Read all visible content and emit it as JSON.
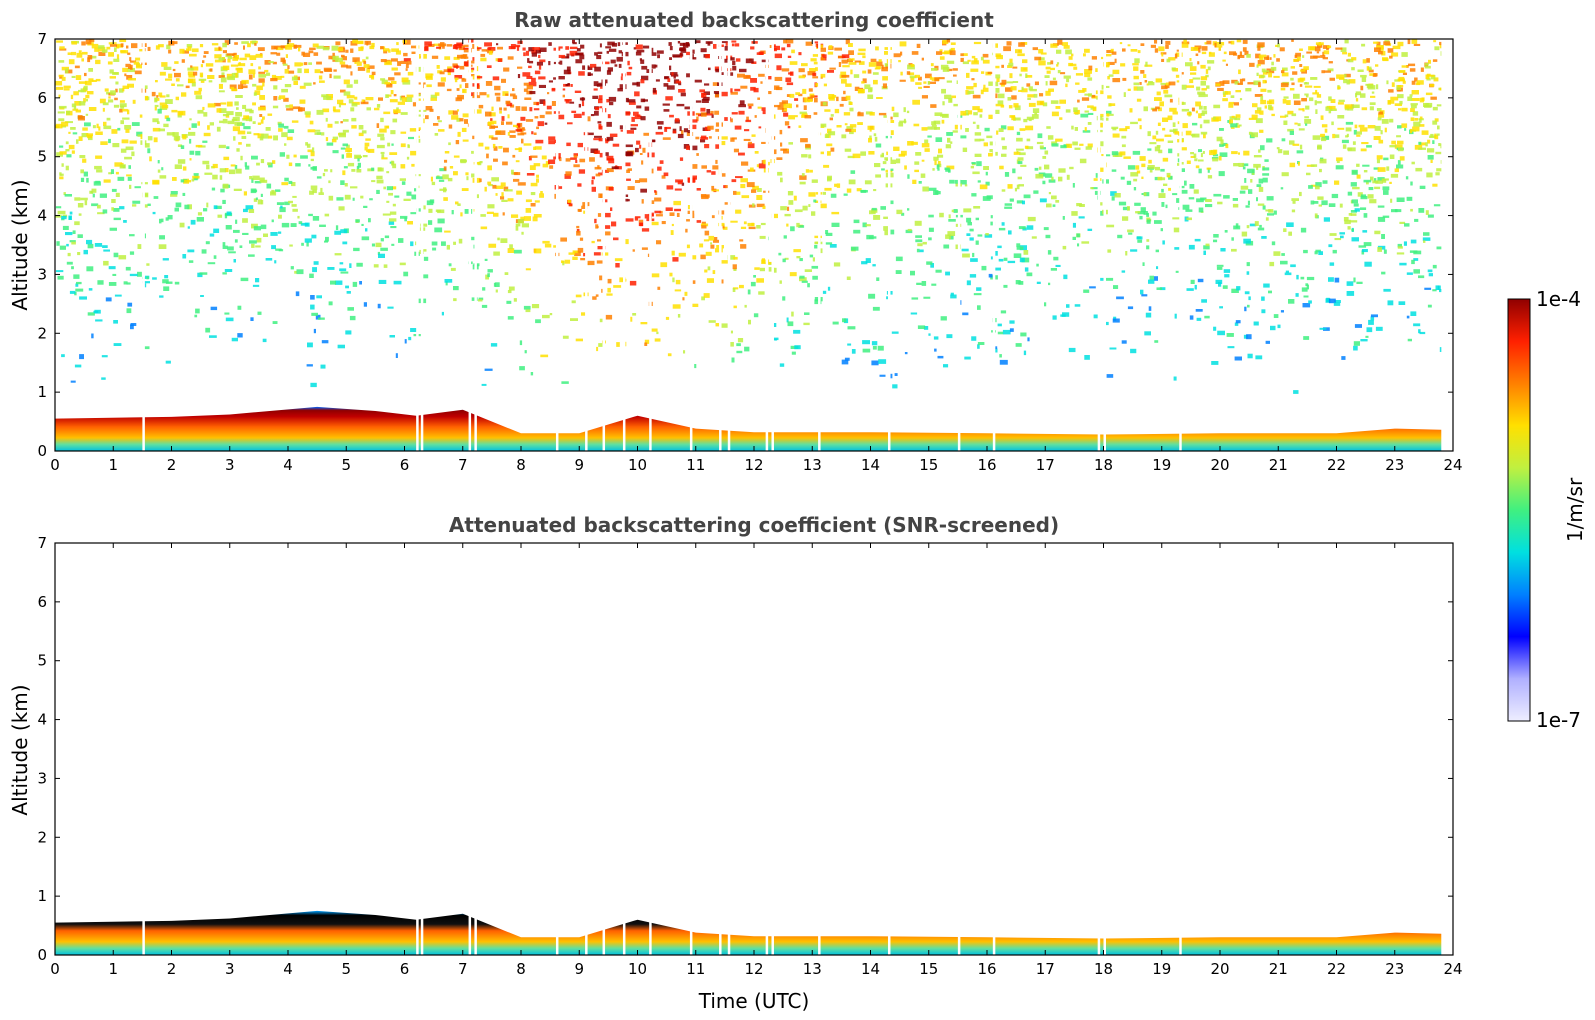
{
  "chart_data": [
    {
      "type": "heatmap",
      "title": "Raw attenuated backscattering coefficient",
      "xlabel": "",
      "ylabel": "Altitude (km)",
      "xlim": [
        0,
        24
      ],
      "ylim": [
        0,
        7
      ],
      "xticks": [
        "0",
        "1",
        "2",
        "3",
        "4",
        "5",
        "6",
        "7",
        "8",
        "9",
        "10",
        "11",
        "12",
        "13",
        "14",
        "15",
        "16",
        "17",
        "18",
        "19",
        "20",
        "21",
        "22",
        "23",
        "24"
      ],
      "yticks": [
        "0",
        "1",
        "2",
        "3",
        "4",
        "5",
        "6",
        "7"
      ],
      "boundary_layer_top_km": {
        "time_h": [
          0,
          2,
          3,
          4.5,
          5.5,
          6.2,
          7,
          8,
          9,
          10,
          11,
          12,
          14,
          16,
          18,
          20,
          22,
          23,
          23.8
        ],
        "altitude_km": [
          0.55,
          0.58,
          0.62,
          0.75,
          0.68,
          0.6,
          0.7,
          0.3,
          0.3,
          0.6,
          0.38,
          0.32,
          0.32,
          0.3,
          0.28,
          0.3,
          0.3,
          0.38,
          0.36
        ]
      },
      "data_end_h": 23.8
    },
    {
      "type": "heatmap",
      "title": "Attenuated backscattering coefficient (SNR-screened)",
      "xlabel": "Time (UTC)",
      "ylabel": "Altitude (km)",
      "xlim": [
        0,
        24
      ],
      "ylim": [
        0,
        7
      ],
      "xticks": [
        "0",
        "1",
        "2",
        "3",
        "4",
        "5",
        "6",
        "7",
        "8",
        "9",
        "10",
        "11",
        "12",
        "13",
        "14",
        "15",
        "16",
        "17",
        "18",
        "19",
        "20",
        "21",
        "22",
        "23",
        "24"
      ],
      "yticks": [
        "0",
        "1",
        "2",
        "3",
        "4",
        "5",
        "6",
        "7"
      ],
      "boundary_layer_top_km": {
        "time_h": [
          0,
          2,
          3,
          4.5,
          5.5,
          6.2,
          7,
          8,
          9,
          10,
          11,
          12,
          14,
          16,
          18,
          20,
          22,
          23,
          23.8
        ],
        "altitude_km": [
          0.55,
          0.58,
          0.62,
          0.75,
          0.68,
          0.6,
          0.7,
          0.3,
          0.3,
          0.6,
          0.38,
          0.32,
          0.32,
          0.3,
          0.28,
          0.3,
          0.3,
          0.38,
          0.36
        ]
      },
      "data_end_h": 23.8
    }
  ],
  "colorbar": {
    "label": "1/m/sr",
    "min_label": "1e-7",
    "max_label": "1e-4",
    "scale": "log",
    "colors": [
      "#eeeeff",
      "#b0b0ff",
      "#0000ff",
      "#0080ff",
      "#00e0e0",
      "#40f080",
      "#c0f040",
      "#ffe000",
      "#ff8000",
      "#ff2000",
      "#900000"
    ]
  }
}
